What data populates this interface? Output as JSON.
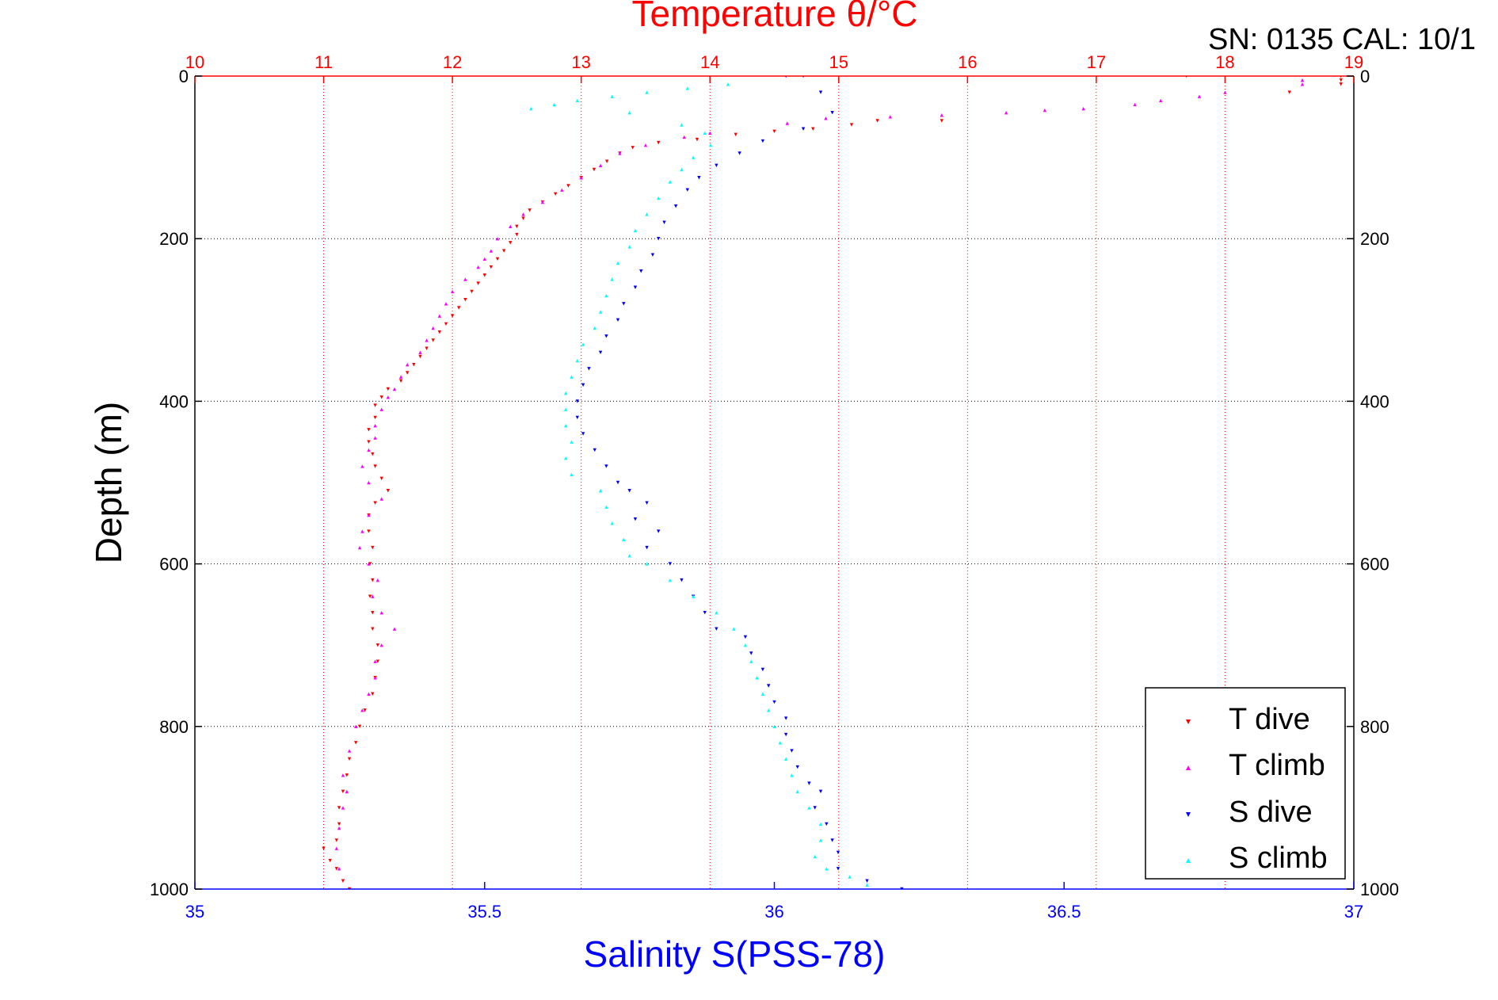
{
  "chart_data": {
    "type": "scatter",
    "title": "Temperature θ/°C",
    "subtitle": "SN: 0135  CAL: 10/1",
    "xlabel": "Salinity S(PSS-78)",
    "x2label": "Temperature θ/°C",
    "ylabel": "Depth (m)",
    "xlim": [
      35,
      37
    ],
    "x2lim": [
      10,
      19
    ],
    "ylim": [
      0,
      1000
    ],
    "y_inverted": true,
    "xticks": [
      "35",
      "35.5",
      "36",
      "36.5",
      "37"
    ],
    "x2ticks": [
      "10",
      "11",
      "12",
      "13",
      "14",
      "15",
      "16",
      "17",
      "18",
      "19"
    ],
    "yticks": [
      "0",
      "200",
      "400",
      "600",
      "800",
      "1000"
    ],
    "grid": true,
    "legend_position": "bottom-right",
    "series": [
      {
        "name": "T dive",
        "axis": "temperature",
        "color": "#ff0000",
        "marker": "triangle-down",
        "points": [
          [
            18.9,
            0
          ],
          [
            18.9,
            5
          ],
          [
            18.9,
            10
          ],
          [
            17.7,
            0
          ],
          [
            18.5,
            20
          ],
          [
            15.8,
            55
          ],
          [
            15.3,
            55
          ],
          [
            15.1,
            60
          ],
          [
            14.8,
            65
          ],
          [
            14.5,
            68
          ],
          [
            14.2,
            72
          ],
          [
            13.9,
            78
          ],
          [
            13.6,
            82
          ],
          [
            13.4,
            88
          ],
          [
            13.3,
            95
          ],
          [
            13.2,
            105
          ],
          [
            13.1,
            115
          ],
          [
            13.0,
            125
          ],
          [
            12.9,
            135
          ],
          [
            12.8,
            145
          ],
          [
            12.7,
            155
          ],
          [
            12.6,
            165
          ],
          [
            12.55,
            175
          ],
          [
            12.5,
            185
          ],
          [
            12.5,
            195
          ],
          [
            12.45,
            205
          ],
          [
            12.4,
            215
          ],
          [
            12.35,
            225
          ],
          [
            12.3,
            235
          ],
          [
            12.25,
            245
          ],
          [
            12.2,
            255
          ],
          [
            12.15,
            265
          ],
          [
            12.1,
            275
          ],
          [
            12.05,
            285
          ],
          [
            12.0,
            295
          ],
          [
            11.95,
            305
          ],
          [
            11.9,
            315
          ],
          [
            11.85,
            325
          ],
          [
            11.8,
            335
          ],
          [
            11.75,
            345
          ],
          [
            11.7,
            355
          ],
          [
            11.65,
            365
          ],
          [
            11.6,
            375
          ],
          [
            11.5,
            385
          ],
          [
            11.45,
            395
          ],
          [
            11.4,
            405
          ],
          [
            11.4,
            420
          ],
          [
            11.35,
            435
          ],
          [
            11.35,
            450
          ],
          [
            11.38,
            465
          ],
          [
            11.4,
            480
          ],
          [
            11.45,
            495
          ],
          [
            11.5,
            510
          ],
          [
            11.4,
            525
          ],
          [
            11.35,
            540
          ],
          [
            11.35,
            560
          ],
          [
            11.38,
            580
          ],
          [
            11.36,
            600
          ],
          [
            11.38,
            620
          ],
          [
            11.36,
            640
          ],
          [
            11.38,
            660
          ],
          [
            11.38,
            680
          ],
          [
            11.42,
            700
          ],
          [
            11.42,
            720
          ],
          [
            11.4,
            740
          ],
          [
            11.38,
            760
          ],
          [
            11.32,
            780
          ],
          [
            11.28,
            800
          ],
          [
            11.25,
            820
          ],
          [
            11.2,
            840
          ],
          [
            11.18,
            860
          ],
          [
            11.15,
            880
          ],
          [
            11.12,
            900
          ],
          [
            11.12,
            920
          ],
          [
            11.1,
            940
          ],
          [
            11.0,
            950
          ],
          [
            11.05,
            965
          ],
          [
            11.1,
            975
          ],
          [
            11.15,
            990
          ],
          [
            11.2,
            1000
          ]
        ]
      },
      {
        "name": "T climb",
        "axis": "temperature",
        "color": "#ff00ff",
        "marker": "triangle-up",
        "points": [
          [
            18.6,
            5
          ],
          [
            18.6,
            10
          ],
          [
            18.0,
            20
          ],
          [
            17.8,
            25
          ],
          [
            17.5,
            30
          ],
          [
            17.3,
            35
          ],
          [
            16.9,
            40
          ],
          [
            16.6,
            42
          ],
          [
            16.3,
            45
          ],
          [
            15.8,
            48
          ],
          [
            15.4,
            50
          ],
          [
            14.9,
            52
          ],
          [
            14.6,
            58
          ],
          [
            14.0,
            70
          ],
          [
            13.8,
            75
          ],
          [
            13.5,
            85
          ],
          [
            13.3,
            95
          ],
          [
            13.15,
            110
          ],
          [
            13.0,
            125
          ],
          [
            12.85,
            140
          ],
          [
            12.7,
            155
          ],
          [
            12.55,
            170
          ],
          [
            12.45,
            185
          ],
          [
            12.35,
            200
          ],
          [
            12.3,
            215
          ],
          [
            12.25,
            225
          ],
          [
            12.2,
            235
          ],
          [
            12.1,
            250
          ],
          [
            12.0,
            265
          ],
          [
            11.95,
            280
          ],
          [
            11.9,
            295
          ],
          [
            11.85,
            310
          ],
          [
            11.8,
            325
          ],
          [
            11.75,
            340
          ],
          [
            11.65,
            355
          ],
          [
            11.6,
            370
          ],
          [
            11.55,
            385
          ],
          [
            11.5,
            395
          ],
          [
            11.45,
            410
          ],
          [
            11.4,
            430
          ],
          [
            11.4,
            445
          ],
          [
            11.35,
            460
          ],
          [
            11.3,
            480
          ],
          [
            11.35,
            500
          ],
          [
            11.45,
            520
          ],
          [
            11.35,
            540
          ],
          [
            11.3,
            560
          ],
          [
            11.28,
            580
          ],
          [
            11.35,
            600
          ],
          [
            11.42,
            620
          ],
          [
            11.38,
            640
          ],
          [
            11.45,
            660
          ],
          [
            11.55,
            680
          ],
          [
            11.45,
            700
          ],
          [
            11.4,
            720
          ],
          [
            11.4,
            740
          ],
          [
            11.35,
            760
          ],
          [
            11.3,
            780
          ],
          [
            11.25,
            800
          ],
          [
            11.2,
            830
          ],
          [
            11.15,
            860
          ],
          [
            11.18,
            880
          ],
          [
            11.15,
            900
          ],
          [
            11.12,
            925
          ],
          [
            11.1,
            950
          ],
          [
            11.12,
            975
          ]
        ]
      },
      {
        "name": "S dive",
        "axis": "salinity",
        "color": "#0000ff",
        "marker": "triangle-down",
        "points": [
          [
            36.02,
            0
          ],
          [
            36.05,
            0
          ],
          [
            36.08,
            20
          ],
          [
            36.1,
            45
          ],
          [
            36.05,
            65
          ],
          [
            35.98,
            80
          ],
          [
            35.94,
            95
          ],
          [
            35.9,
            110
          ],
          [
            35.87,
            125
          ],
          [
            35.85,
            140
          ],
          [
            35.83,
            160
          ],
          [
            35.81,
            180
          ],
          [
            35.8,
            200
          ],
          [
            35.79,
            220
          ],
          [
            35.77,
            240
          ],
          [
            35.76,
            260
          ],
          [
            35.74,
            280
          ],
          [
            35.73,
            300
          ],
          [
            35.71,
            320
          ],
          [
            35.7,
            340
          ],
          [
            35.68,
            360
          ],
          [
            35.67,
            380
          ],
          [
            35.66,
            400
          ],
          [
            35.66,
            420
          ],
          [
            35.67,
            440
          ],
          [
            35.69,
            460
          ],
          [
            35.71,
            480
          ],
          [
            35.73,
            500
          ],
          [
            35.75,
            510
          ],
          [
            35.78,
            525
          ],
          [
            35.76,
            545
          ],
          [
            35.8,
            560
          ],
          [
            35.78,
            580
          ],
          [
            35.82,
            600
          ],
          [
            35.84,
            620
          ],
          [
            35.86,
            640
          ],
          [
            35.88,
            660
          ],
          [
            35.9,
            680
          ],
          [
            35.95,
            690
          ],
          [
            35.96,
            710
          ],
          [
            35.98,
            730
          ],
          [
            35.99,
            750
          ],
          [
            36.0,
            770
          ],
          [
            36.02,
            790
          ],
          [
            36.02,
            810
          ],
          [
            36.03,
            830
          ],
          [
            36.04,
            850
          ],
          [
            36.06,
            870
          ],
          [
            36.08,
            880
          ],
          [
            36.07,
            900
          ],
          [
            36.09,
            920
          ],
          [
            36.1,
            940
          ],
          [
            36.11,
            955
          ],
          [
            36.11,
            975
          ],
          [
            36.16,
            990
          ],
          [
            36.22,
            1000
          ]
        ]
      },
      {
        "name": "S climb",
        "axis": "salinity",
        "color": "#00ffff",
        "marker": "triangle-up",
        "points": [
          [
            35.58,
            40
          ],
          [
            35.62,
            35
          ],
          [
            35.66,
            30
          ],
          [
            35.72,
            25
          ],
          [
            35.78,
            20
          ],
          [
            35.85,
            15
          ],
          [
            35.92,
            10
          ],
          [
            35.75,
            45
          ],
          [
            35.84,
            60
          ],
          [
            35.88,
            70
          ],
          [
            35.89,
            85
          ],
          [
            35.86,
            100
          ],
          [
            35.84,
            115
          ],
          [
            35.82,
            130
          ],
          [
            35.8,
            150
          ],
          [
            35.78,
            170
          ],
          [
            35.76,
            190
          ],
          [
            35.75,
            210
          ],
          [
            35.73,
            230
          ],
          [
            35.72,
            250
          ],
          [
            35.71,
            270
          ],
          [
            35.7,
            290
          ],
          [
            35.69,
            310
          ],
          [
            35.67,
            330
          ],
          [
            35.66,
            350
          ],
          [
            35.65,
            370
          ],
          [
            35.64,
            390
          ],
          [
            35.64,
            410
          ],
          [
            35.64,
            430
          ],
          [
            35.65,
            450
          ],
          [
            35.64,
            470
          ],
          [
            35.65,
            490
          ],
          [
            35.7,
            510
          ],
          [
            35.71,
            530
          ],
          [
            35.72,
            550
          ],
          [
            35.74,
            570
          ],
          [
            35.75,
            590
          ],
          [
            35.78,
            600
          ],
          [
            35.82,
            620
          ],
          [
            35.86,
            640
          ],
          [
            35.9,
            660
          ],
          [
            35.93,
            680
          ],
          [
            35.95,
            700
          ],
          [
            35.96,
            720
          ],
          [
            35.97,
            740
          ],
          [
            35.98,
            760
          ],
          [
            35.99,
            780
          ],
          [
            36.0,
            800
          ],
          [
            36.01,
            820
          ],
          [
            36.02,
            840
          ],
          [
            36.03,
            860
          ],
          [
            36.04,
            880
          ],
          [
            36.06,
            900
          ],
          [
            36.08,
            920
          ],
          [
            36.08,
            940
          ],
          [
            36.07,
            960
          ],
          [
            36.09,
            975
          ],
          [
            36.13,
            985
          ],
          [
            36.16,
            995
          ]
        ]
      }
    ]
  }
}
